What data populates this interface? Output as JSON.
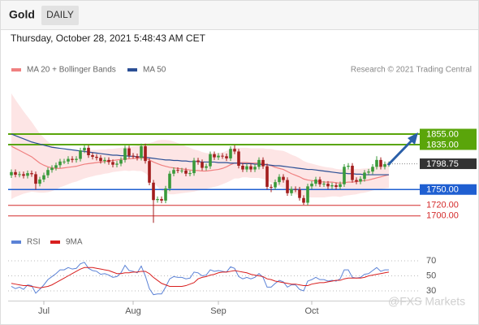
{
  "chart_data": [
    {
      "type": "candlestick",
      "title": "Gold",
      "timeframe": "DAILY",
      "date": "Thursday, October 28, 2021 5:48:43 AM CET",
      "credit": "Research © 2021 Trading Central",
      "ylim": [
        1675,
        1955
      ],
      "xticks": [
        {
          "value": 8,
          "label": "Jul"
        },
        {
          "value": 30,
          "label": "Aug"
        },
        {
          "value": 51,
          "label": "Sep"
        },
        {
          "value": 74,
          "label": "Oct"
        }
      ],
      "up_color": "#3a9a3a",
      "down_color": "#a31d1d",
      "ohlc": [
        [
          1777,
          1788,
          1772,
          1783
        ],
        [
          1783,
          1788,
          1773,
          1778
        ],
        [
          1778,
          1784,
          1773,
          1779
        ],
        [
          1779,
          1784,
          1771,
          1776
        ],
        [
          1776,
          1786,
          1771,
          1781
        ],
        [
          1781,
          1786,
          1774,
          1779
        ],
        [
          1779,
          1784,
          1750,
          1761
        ],
        [
          1761,
          1774,
          1756,
          1769
        ],
        [
          1769,
          1782,
          1764,
          1777
        ],
        [
          1777,
          1792,
          1772,
          1787
        ],
        [
          1787,
          1796,
          1782,
          1791
        ],
        [
          1791,
          1801,
          1786,
          1796
        ],
        [
          1796,
          1808,
          1791,
          1803
        ],
        [
          1803,
          1808,
          1798,
          1803
        ],
        [
          1803,
          1813,
          1798,
          1808
        ],
        [
          1808,
          1813,
          1801,
          1806
        ],
        [
          1806,
          1813,
          1801,
          1808
        ],
        [
          1808,
          1829,
          1803,
          1824
        ],
        [
          1824,
          1834,
          1819,
          1829
        ],
        [
          1829,
          1834,
          1810,
          1815
        ],
        [
          1815,
          1820,
          1807,
          1812
        ],
        [
          1812,
          1817,
          1805,
          1810
        ],
        [
          1810,
          1815,
          1799,
          1804
        ],
        [
          1804,
          1811,
          1799,
          1806
        ],
        [
          1806,
          1811,
          1797,
          1802
        ],
        [
          1802,
          1807,
          1792,
          1797
        ],
        [
          1797,
          1804,
          1792,
          1799
        ],
        [
          1799,
          1811,
          1794,
          1806
        ],
        [
          1806,
          1833,
          1801,
          1828
        ],
        [
          1828,
          1833,
          1809,
          1814
        ],
        [
          1814,
          1819,
          1808,
          1813
        ],
        [
          1813,
          1818,
          1805,
          1810
        ],
        [
          1810,
          1837,
          1805,
          1832
        ],
        [
          1832,
          1837,
          1799,
          1804
        ],
        [
          1804,
          1809,
          1758,
          1763
        ],
        [
          1763,
          1768,
          1687,
          1730
        ],
        [
          1730,
          1737,
          1725,
          1732
        ],
        [
          1732,
          1737,
          1724,
          1729
        ],
        [
          1729,
          1757,
          1724,
          1752
        ],
        [
          1752,
          1785,
          1747,
          1780
        ],
        [
          1780,
          1792,
          1775,
          1787
        ],
        [
          1787,
          1792,
          1781,
          1786
        ],
        [
          1786,
          1791,
          1781,
          1786
        ],
        [
          1786,
          1791,
          1775,
          1780
        ],
        [
          1780,
          1786,
          1775,
          1781
        ],
        [
          1781,
          1810,
          1776,
          1805
        ],
        [
          1805,
          1810,
          1797,
          1802
        ],
        [
          1802,
          1807,
          1786,
          1791
        ],
        [
          1791,
          1799,
          1786,
          1794
        ],
        [
          1794,
          1822,
          1789,
          1817
        ],
        [
          1817,
          1822,
          1806,
          1811
        ],
        [
          1811,
          1819,
          1806,
          1814
        ],
        [
          1814,
          1819,
          1808,
          1813
        ],
        [
          1813,
          1818,
          1804,
          1809
        ],
        [
          1809,
          1832,
          1804,
          1827
        ],
        [
          1827,
          1834,
          1817,
          1822
        ],
        [
          1822,
          1827,
          1790,
          1795
        ],
        [
          1795,
          1800,
          1783,
          1788
        ],
        [
          1788,
          1799,
          1783,
          1794
        ],
        [
          1794,
          1799,
          1783,
          1788
        ],
        [
          1788,
          1798,
          1783,
          1793
        ],
        [
          1793,
          1811,
          1788,
          1806
        ],
        [
          1806,
          1811,
          1789,
          1794
        ],
        [
          1794,
          1799,
          1750,
          1755
        ],
        [
          1755,
          1760,
          1745,
          1754
        ],
        [
          1754,
          1769,
          1749,
          1764
        ],
        [
          1764,
          1779,
          1759,
          1774
        ],
        [
          1774,
          1779,
          1763,
          1768
        ],
        [
          1768,
          1773,
          1738,
          1743
        ],
        [
          1743,
          1756,
          1738,
          1751
        ],
        [
          1751,
          1756,
          1745,
          1750
        ],
        [
          1750,
          1755,
          1729,
          1734
        ],
        [
          1734,
          1739,
          1721,
          1725
        ],
        [
          1725,
          1761,
          1720,
          1756
        ],
        [
          1756,
          1766,
          1751,
          1761
        ],
        [
          1761,
          1774,
          1756,
          1769
        ],
        [
          1769,
          1774,
          1755,
          1760
        ],
        [
          1760,
          1766,
          1755,
          1761
        ],
        [
          1761,
          1766,
          1751,
          1756
        ],
        [
          1756,
          1763,
          1751,
          1758
        ],
        [
          1758,
          1763,
          1750,
          1755
        ],
        [
          1755,
          1765,
          1750,
          1760
        ],
        [
          1760,
          1798,
          1755,
          1793
        ],
        [
          1793,
          1800,
          1788,
          1795
        ],
        [
          1795,
          1800,
          1763,
          1768
        ],
        [
          1768,
          1773,
          1760,
          1765
        ],
        [
          1765,
          1775,
          1760,
          1770
        ],
        [
          1770,
          1787,
          1765,
          1782
        ],
        [
          1782,
          1789,
          1777,
          1784
        ],
        [
          1784,
          1798,
          1779,
          1793
        ],
        [
          1793,
          1813,
          1788,
          1806
        ],
        [
          1806,
          1811,
          1788,
          1793
        ],
        [
          1793,
          1803,
          1788,
          1798
        ],
        [
          1798,
          1803,
          1793,
          1798
        ]
      ],
      "series": [
        {
          "name": "MA 20 + Bollinger Bands",
          "color": "#f08080",
          "band_color": "#fde0e0",
          "values": [
            1832,
            1828,
            1824,
            1820,
            1816,
            1812,
            1806,
            1800,
            1796,
            1793,
            1791,
            1790,
            1790,
            1791,
            1792,
            1793,
            1794,
            1796,
            1798,
            1799,
            1800,
            1801,
            1802,
            1803,
            1804,
            1805,
            1806,
            1807,
            1808,
            1808,
            1809,
            1809,
            1810,
            1809,
            1806,
            1802,
            1799,
            1796,
            1794,
            1792,
            1791,
            1790,
            1789,
            1788,
            1787,
            1786,
            1786,
            1785,
            1785,
            1786,
            1787,
            1788,
            1790,
            1793,
            1797,
            1800,
            1800,
            1801,
            1801,
            1800,
            1800,
            1800,
            1799,
            1797,
            1795,
            1792,
            1790,
            1788,
            1784,
            1780,
            1777,
            1774,
            1770,
            1768,
            1767,
            1766,
            1765,
            1764,
            1764,
            1764,
            1763,
            1762,
            1763,
            1764,
            1764,
            1765,
            1766,
            1767,
            1768,
            1770,
            1772,
            1774,
            1776,
            1778
          ],
          "upper": [
            1932,
            1920,
            1909,
            1898,
            1888,
            1878,
            1867,
            1856,
            1848,
            1841,
            1835,
            1830,
            1826,
            1825,
            1824,
            1823,
            1823,
            1824,
            1825,
            1825,
            1825,
            1825,
            1826,
            1826,
            1827,
            1827,
            1828,
            1829,
            1830,
            1831,
            1832,
            1833,
            1835,
            1837,
            1838,
            1840,
            1843,
            1844,
            1844,
            1843,
            1841,
            1838,
            1835,
            1832,
            1829,
            1826,
            1824,
            1821,
            1819,
            1819,
            1819,
            1819,
            1820,
            1823,
            1827,
            1829,
            1829,
            1829,
            1829,
            1828,
            1828,
            1828,
            1828,
            1827,
            1827,
            1825,
            1824,
            1823,
            1820,
            1816,
            1813,
            1809,
            1804,
            1801,
            1799,
            1797,
            1795,
            1793,
            1792,
            1791,
            1789,
            1788,
            1788,
            1789,
            1788,
            1789,
            1789,
            1790,
            1790,
            1792,
            1794,
            1797,
            1800,
            1803
          ],
          "lower": [
            1732,
            1736,
            1739,
            1742,
            1744,
            1746,
            1745,
            1744,
            1744,
            1745,
            1747,
            1750,
            1754,
            1757,
            1760,
            1763,
            1765,
            1768,
            1771,
            1773,
            1775,
            1777,
            1778,
            1780,
            1781,
            1783,
            1784,
            1785,
            1786,
            1785,
            1786,
            1785,
            1785,
            1781,
            1774,
            1764,
            1755,
            1748,
            1744,
            1741,
            1741,
            1742,
            1743,
            1744,
            1745,
            1746,
            1748,
            1749,
            1751,
            1753,
            1755,
            1757,
            1760,
            1763,
            1767,
            1771,
            1771,
            1773,
            1773,
            1772,
            1772,
            1772,
            1770,
            1767,
            1763,
            1759,
            1756,
            1753,
            1748,
            1744,
            1741,
            1739,
            1736,
            1735,
            1735,
            1735,
            1735,
            1735,
            1736,
            1737,
            1737,
            1736,
            1738,
            1739,
            1740,
            1741,
            1743,
            1744,
            1746,
            1748,
            1750,
            1751,
            1752,
            1753
          ]
        },
        {
          "name": "MA 50",
          "color": "#2b4f95",
          "values": [
            1855,
            1852,
            1849,
            1846,
            1843,
            1840,
            1838,
            1836,
            1834,
            1832,
            1830,
            1829,
            1828,
            1827,
            1826,
            1825,
            1824,
            1823,
            1822,
            1821,
            1820,
            1819,
            1818,
            1817,
            1816,
            1815,
            1815,
            1814,
            1814,
            1813,
            1813,
            1812,
            1812,
            1811,
            1810,
            1809,
            1808,
            1807,
            1806,
            1806,
            1805,
            1805,
            1804,
            1804,
            1803,
            1803,
            1803,
            1802,
            1802,
            1802,
            1802,
            1801,
            1801,
            1801,
            1800,
            1800,
            1800,
            1799,
            1799,
            1799,
            1798,
            1798,
            1797,
            1797,
            1796,
            1795,
            1795,
            1794,
            1793,
            1792,
            1791,
            1790,
            1789,
            1788,
            1788,
            1787,
            1786,
            1785,
            1784,
            1783,
            1782,
            1781,
            1781,
            1780,
            1780,
            1779,
            1779,
            1778,
            1778,
            1778,
            1778,
            1778,
            1778,
            1778
          ]
        }
      ],
      "levels": [
        {
          "value": 1855,
          "label": "1855.00",
          "color": "#5aa50a",
          "style": "box"
        },
        {
          "value": 1835,
          "label": "1835.00",
          "color": "#5aa50a",
          "style": "box"
        },
        {
          "value": 1798.75,
          "label": "1798.75",
          "color": "#333333",
          "style": "current"
        },
        {
          "value": 1750,
          "label": "1750.00",
          "color": "#1f5fd1",
          "style": "box"
        },
        {
          "value": 1720,
          "label": "1720.00",
          "color": "#d42a2a",
          "style": "text"
        },
        {
          "value": 1700,
          "label": "1700.00",
          "color": "#d42a2a",
          "style": "text"
        }
      ]
    },
    {
      "type": "line",
      "ylim": [
        16,
        84
      ],
      "yticks": [
        70,
        50,
        30
      ],
      "watermark": "@FXS Markets",
      "series": [
        {
          "name": "RSI",
          "color": "#5b82d6",
          "values": [
            36,
            33,
            35,
            32,
            38,
            37,
            27,
            32,
            38,
            45,
            49,
            53,
            58,
            58,
            61,
            59,
            60,
            66,
            68,
            60,
            57,
            56,
            52,
            53,
            51,
            48,
            49,
            54,
            64,
            57,
            56,
            54,
            63,
            50,
            33,
            25,
            26,
            26,
            35,
            46,
            49,
            48,
            48,
            46,
            47,
            55,
            54,
            50,
            51,
            58,
            56,
            57,
            56,
            55,
            62,
            60,
            49,
            46,
            48,
            46,
            48,
            53,
            48,
            35,
            35,
            40,
            44,
            42,
            35,
            38,
            38,
            32,
            30,
            43,
            45,
            48,
            45,
            45,
            43,
            44,
            43,
            46,
            58,
            58,
            48,
            47,
            48,
            52,
            53,
            57,
            61,
            56,
            58,
            58
          ]
        },
        {
          "name": "9MA",
          "color": "#d81e1e",
          "values": [
            40,
            39,
            38,
            37,
            37,
            36,
            35,
            34,
            35,
            36,
            38,
            41,
            44,
            47,
            50,
            53,
            56,
            59,
            61,
            61,
            61,
            60,
            59,
            58,
            57,
            55,
            53,
            53,
            54,
            54,
            55,
            55,
            56,
            56,
            53,
            48,
            44,
            40,
            38,
            36,
            36,
            36,
            36,
            37,
            39,
            41,
            46,
            48,
            49,
            51,
            52,
            54,
            55,
            55,
            56,
            57,
            56,
            55,
            54,
            52,
            51,
            50,
            49,
            46,
            45,
            43,
            42,
            41,
            40,
            39,
            39,
            38,
            37,
            37,
            39,
            40,
            41,
            41,
            42,
            43,
            44,
            44,
            46,
            47,
            47,
            47,
            47,
            48,
            50,
            51,
            52,
            53,
            54,
            55
          ]
        }
      ]
    }
  ]
}
